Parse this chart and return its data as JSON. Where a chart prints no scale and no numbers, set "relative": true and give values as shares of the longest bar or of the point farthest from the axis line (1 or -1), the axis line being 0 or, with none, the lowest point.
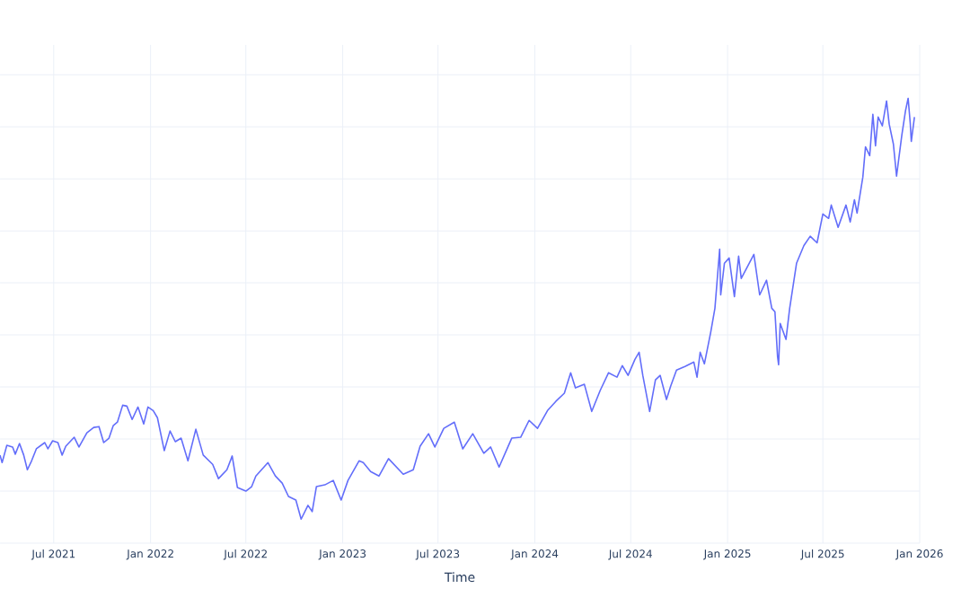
{
  "chart_data": {
    "type": "line",
    "xlabel": "Time",
    "relative": true,
    "grid": true,
    "color": "#636efa",
    "xlim": [
      "2021-03-21",
      "2026-01-01"
    ],
    "xticks": [
      {
        "value": "2021-07-01",
        "label": "Jul 2021"
      },
      {
        "value": "2022-01-01",
        "label": "Jan 2022"
      },
      {
        "value": "2022-07-01",
        "label": "Jul 2022"
      },
      {
        "value": "2023-01-01",
        "label": "Jan 2023"
      },
      {
        "value": "2023-07-01",
        "label": "Jul 2023"
      },
      {
        "value": "2024-01-01",
        "label": "Jan 2024"
      },
      {
        "value": "2024-07-01",
        "label": "Jul 2024"
      },
      {
        "value": "2025-01-01",
        "label": "Jan 2025"
      },
      {
        "value": "2025-07-01",
        "label": "Jul 2025"
      },
      {
        "value": "2026-01-01",
        "label": "Jan 2026"
      }
    ],
    "x": [
      "2021-03-21",
      "2021-03-25",
      "2021-04-03",
      "2021-04-14",
      "2021-04-19",
      "2021-04-27",
      "2021-05-05",
      "2021-05-12",
      "2021-05-20",
      "2021-05-29",
      "2021-06-14",
      "2021-06-20",
      "2021-06-29",
      "2021-07-09",
      "2021-07-17",
      "2021-07-24",
      "2021-08-09",
      "2021-08-18",
      "2021-09-02",
      "2021-09-15",
      "2021-09-25",
      "2021-10-04",
      "2021-10-14",
      "2021-10-22",
      "2021-10-30",
      "2021-11-09",
      "2021-11-17",
      "2021-11-27",
      "2021-12-08",
      "2021-12-19",
      "2021-12-27",
      "2022-01-06",
      "2022-01-14",
      "2022-01-27",
      "2022-02-07",
      "2022-02-17",
      "2022-02-28",
      "2022-03-13",
      "2022-03-28",
      "2022-04-11",
      "2022-04-29",
      "2022-05-10",
      "2022-05-26",
      "2022-06-05",
      "2022-06-15",
      "2022-07-01",
      "2022-07-12",
      "2022-07-20",
      "2022-08-12",
      "2022-08-26",
      "2022-09-08",
      "2022-09-20",
      "2022-10-04",
      "2022-10-14",
      "2022-10-27",
      "2022-11-04",
      "2022-11-12",
      "2022-11-28",
      "2022-12-14",
      "2022-12-29",
      "2023-01-11",
      "2023-02-01",
      "2023-02-09",
      "2023-02-23",
      "2023-03-11",
      "2023-03-29",
      "2023-04-26",
      "2023-05-15",
      "2023-05-28",
      "2023-06-13",
      "2023-06-25",
      "2023-07-12",
      "2023-08-01",
      "2023-08-17",
      "2023-09-05",
      "2023-09-26",
      "2023-10-09",
      "2023-10-25",
      "2023-11-18",
      "2023-12-05",
      "2023-12-21",
      "2024-01-06",
      "2024-01-25",
      "2024-02-10",
      "2024-02-26",
      "2024-03-09",
      "2024-03-18",
      "2024-04-04",
      "2024-04-18",
      "2024-05-04",
      "2024-05-20",
      "2024-06-05",
      "2024-06-15",
      "2024-06-26",
      "2024-07-09",
      "2024-07-17",
      "2024-07-24",
      "2024-08-06",
      "2024-08-17",
      "2024-08-26",
      "2024-09-07",
      "2024-09-15",
      "2024-09-26",
      "2024-10-12",
      "2024-10-29",
      "2024-11-04",
      "2024-11-10",
      "2024-11-18",
      "2024-11-30",
      "2024-12-08",
      "2024-12-17",
      "2024-12-19",
      "2024-12-26",
      "2025-01-04",
      "2025-01-14",
      "2025-01-22",
      "2025-01-27",
      "2025-02-20",
      "2025-03-03",
      "2025-03-16",
      "2025-03-26",
      "2025-04-01",
      "2025-04-06",
      "2025-04-08",
      "2025-04-11",
      "2025-04-22",
      "2025-04-29",
      "2025-05-12",
      "2025-05-26",
      "2025-06-07",
      "2025-06-20",
      "2025-07-01",
      "2025-07-12",
      "2025-07-17",
      "2025-07-30",
      "2025-08-14",
      "2025-08-22",
      "2025-08-30",
      "2025-09-04",
      "2025-09-15",
      "2025-09-20",
      "2025-09-28",
      "2025-10-04",
      "2025-10-09",
      "2025-10-14",
      "2025-10-22",
      "2025-10-30",
      "2025-11-04",
      "2025-11-12",
      "2025-11-18",
      "2025-11-28",
      "2025-12-05",
      "2025-12-10",
      "2025-12-14",
      "2025-12-16",
      "2025-12-22"
    ],
    "values": [
      0.198,
      0.181,
      0.22,
      0.216,
      0.2,
      0.224,
      0.198,
      0.165,
      0.185,
      0.212,
      0.226,
      0.212,
      0.23,
      0.226,
      0.198,
      0.218,
      0.238,
      0.216,
      0.248,
      0.26,
      0.262,
      0.226,
      0.236,
      0.264,
      0.272,
      0.31,
      0.308,
      0.278,
      0.306,
      0.268,
      0.306,
      0.298,
      0.282,
      0.208,
      0.252,
      0.228,
      0.236,
      0.185,
      0.256,
      0.198,
      0.177,
      0.145,
      0.165,
      0.196,
      0.125,
      0.117,
      0.127,
      0.151,
      0.181,
      0.151,
      0.135,
      0.105,
      0.097,
      0.054,
      0.085,
      0.071,
      0.127,
      0.131,
      0.141,
      0.097,
      0.141,
      0.185,
      0.181,
      0.161,
      0.151,
      0.19,
      0.155,
      0.165,
      0.218,
      0.246,
      0.216,
      0.258,
      0.272,
      0.212,
      0.246,
      0.202,
      0.216,
      0.171,
      0.236,
      0.238,
      0.276,
      0.258,
      0.298,
      0.319,
      0.337,
      0.383,
      0.349,
      0.357,
      0.296,
      0.343,
      0.383,
      0.373,
      0.399,
      0.377,
      0.413,
      0.429,
      0.377,
      0.296,
      0.367,
      0.377,
      0.323,
      0.353,
      0.389,
      0.397,
      0.407,
      0.373,
      0.429,
      0.403,
      0.474,
      0.528,
      0.661,
      0.558,
      0.629,
      0.641,
      0.554,
      0.645,
      0.595,
      0.649,
      0.558,
      0.591,
      0.528,
      0.52,
      0.419,
      0.401,
      0.494,
      0.458,
      0.528,
      0.629,
      0.669,
      0.69,
      0.675,
      0.74,
      0.73,
      0.76,
      0.71,
      0.76,
      0.722,
      0.772,
      0.742,
      0.823,
      0.891,
      0.871,
      0.964,
      0.893,
      0.958,
      0.938,
      0.994,
      0.942,
      0.897,
      0.825,
      0.917,
      0.972,
      1.0,
      0.944,
      0.903,
      0.958
    ]
  }
}
